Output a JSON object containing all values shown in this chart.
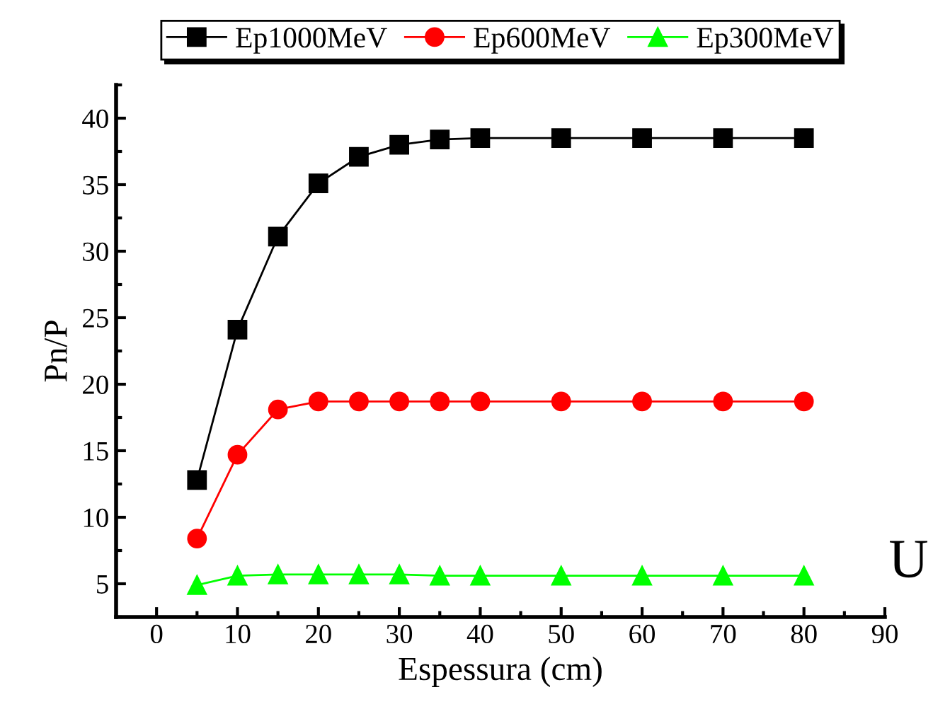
{
  "chart_data": {
    "type": "line",
    "xlabel": "Espessura (cm)",
    "ylabel": "Pn/P",
    "x": [
      5,
      10,
      15,
      20,
      25,
      30,
      35,
      40,
      50,
      60,
      70,
      80
    ],
    "series": [
      {
        "name": "Ep1000MeV",
        "color": "#000000",
        "marker": "square",
        "values": [
          12.8,
          24.1,
          31.1,
          35.1,
          37.1,
          38.0,
          38.4,
          38.5,
          38.5,
          38.5,
          38.5,
          38.5
        ]
      },
      {
        "name": "Ep600MeV",
        "color": "#ff0000",
        "marker": "circle",
        "values": [
          8.4,
          14.7,
          18.1,
          18.7,
          18.7,
          18.7,
          18.7,
          18.7,
          18.7,
          18.7,
          18.7,
          18.7
        ]
      },
      {
        "name": "Ep300MeV",
        "color": "#00ff00",
        "marker": "triangle",
        "values": [
          4.9,
          5.6,
          5.7,
          5.7,
          5.7,
          5.7,
          5.6,
          5.6,
          5.6,
          5.6,
          5.6,
          5.6
        ]
      }
    ],
    "xlim": [
      -5,
      90
    ],
    "xticks": [
      0,
      10,
      20,
      30,
      40,
      50,
      60,
      70,
      80,
      90
    ],
    "ylim": [
      2.5,
      42.5
    ],
    "yticks": [
      5,
      10,
      15,
      20,
      25,
      30,
      35,
      40
    ],
    "annotations": [
      "U"
    ],
    "grid": false,
    "legend": "top",
    "line_style": "solid"
  }
}
